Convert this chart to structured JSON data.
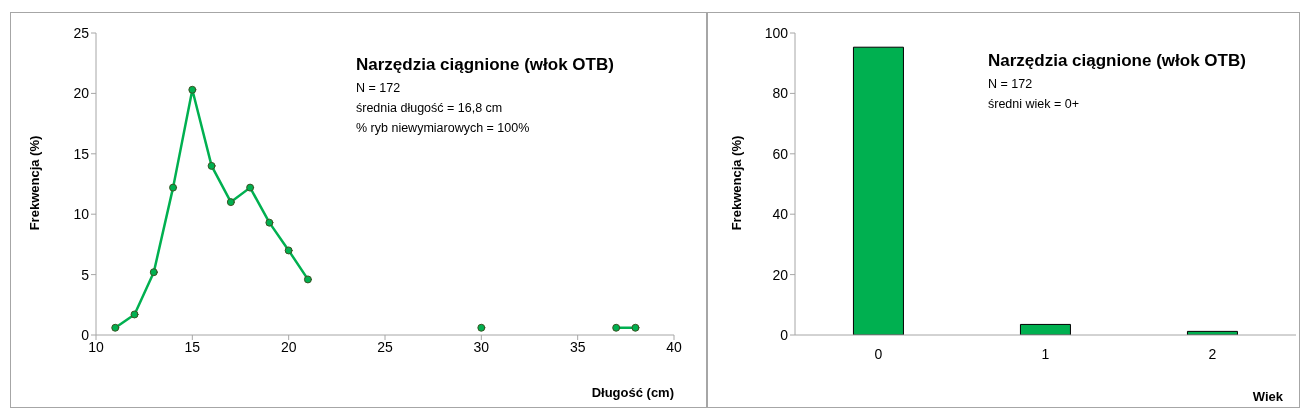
{
  "chart_data": [
    {
      "type": "line",
      "title": "Narzędzia ciągnione (włok OTB)",
      "annotations": [
        "N = 172",
        "średnia długość = 16,8 cm",
        "% ryb niewymiarowych = 100%"
      ],
      "xlabel": "Długość (cm)",
      "ylabel": "Frekwencja (%)",
      "xlim": [
        10,
        40
      ],
      "xticks": [
        10,
        15,
        20,
        25,
        30,
        35,
        40
      ],
      "ylim": [
        0,
        25
      ],
      "yticks": [
        0,
        5,
        10,
        15,
        20,
        25
      ],
      "marker": "circle",
      "line_style": "solid",
      "series": [
        {
          "color": "#00b050",
          "x": [
            11,
            12,
            13,
            14,
            15,
            16,
            17,
            18,
            19,
            20,
            21
          ],
          "values": [
            0.6,
            1.7,
            5.2,
            12.2,
            20.3,
            14,
            11,
            12.2,
            9.3,
            7,
            4.6
          ]
        },
        {
          "color": "#00b050",
          "x": [
            30
          ],
          "values": [
            0.6
          ]
        },
        {
          "color": "#00b050",
          "x": [
            37,
            38
          ],
          "values": [
            0.6,
            0.6
          ]
        }
      ]
    },
    {
      "type": "bar",
      "title": "Narzędzia ciągnione (włok OTB)",
      "annotations": [
        "N = 172",
        "średni wiek = 0+"
      ],
      "xlabel": "Wiek",
      "ylabel": "Frekwencja (%)",
      "categories": [
        "0",
        "1",
        "2"
      ],
      "values": [
        95.3,
        3.5,
        1.2
      ],
      "color": "#00b050",
      "ylim": [
        0,
        100
      ],
      "yticks": [
        0,
        20,
        40,
        60,
        80,
        100
      ]
    }
  ]
}
